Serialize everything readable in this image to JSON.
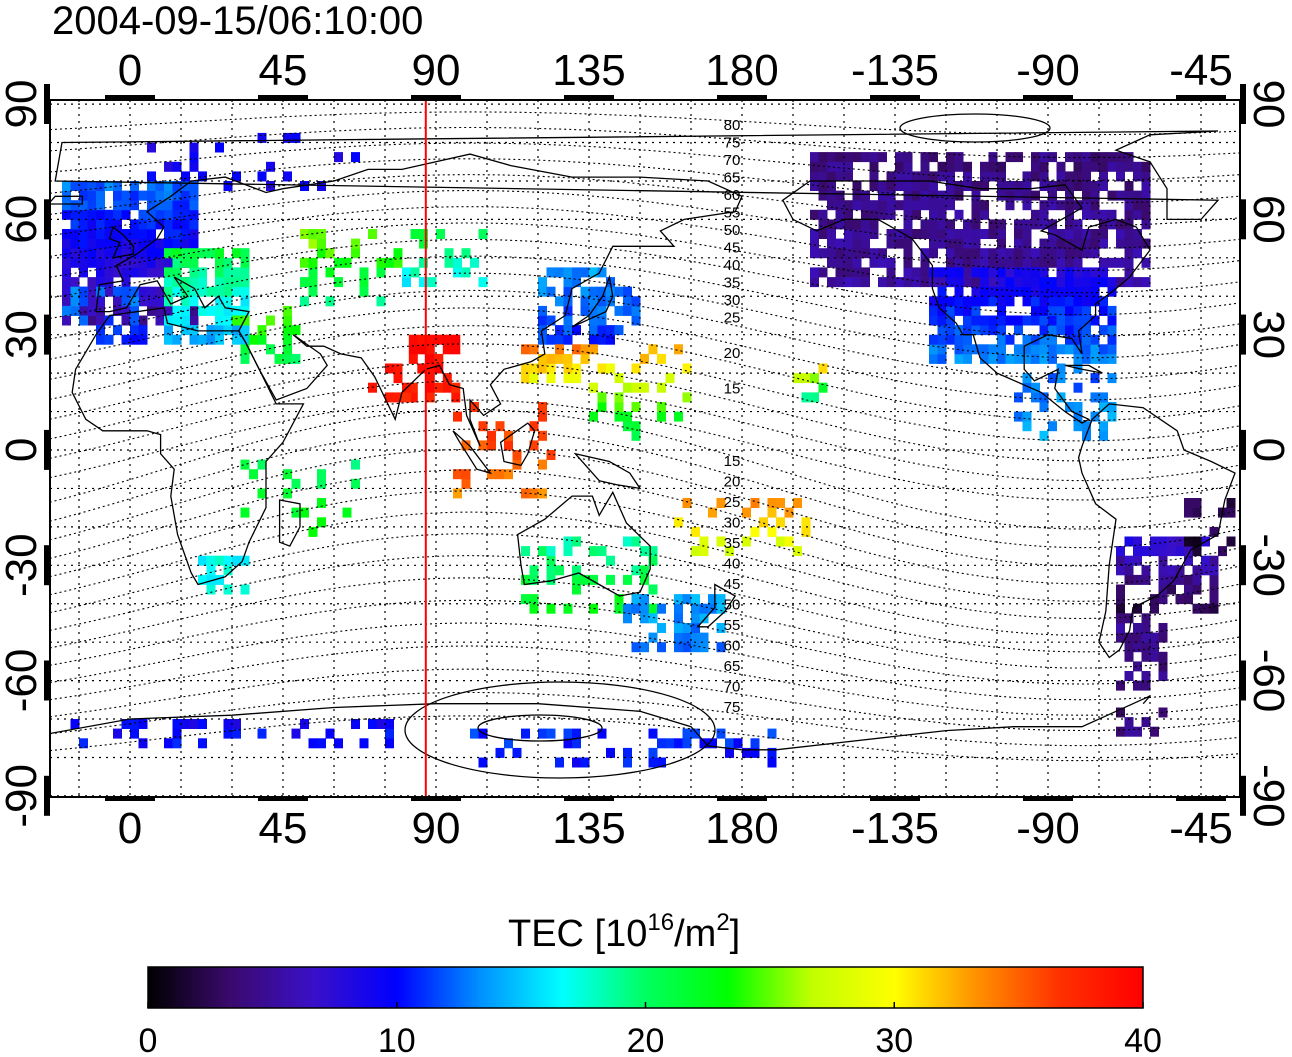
{
  "title": "2004-09-15/06:10:00",
  "top_lon_labels": [
    "0",
    "45",
    "90",
    "135",
    "180",
    "-135",
    "-90",
    "-45"
  ],
  "bottom_lon_labels": [
    "0",
    "45",
    "90",
    "135",
    "180",
    "-135",
    "-90",
    "-45"
  ],
  "left_lat_labels": [
    "90",
    "60",
    "30",
    "0",
    "-30",
    "-60",
    "-90"
  ],
  "right_lat_labels": [
    "90",
    "60",
    "30",
    "0",
    "-30",
    "-60",
    "-90"
  ],
  "contour_labels_north": [
    "80",
    "75",
    "70",
    "65",
    "60",
    "55",
    "50",
    "45",
    "40",
    "35",
    "30",
    "25",
    "20",
    "15"
  ],
  "contour_labels_south": [
    "15",
    "20",
    "25",
    "30",
    "35",
    "40",
    "45",
    "50",
    "55",
    "60",
    "65",
    "70",
    "75"
  ],
  "marker_line": {
    "longitude": 87,
    "color": "#ff0000"
  },
  "colorbar": {
    "label_main": "TEC  [10",
    "label_sup1": "16",
    "label_mid": "/m",
    "label_sup2": "2",
    "label_end": "]",
    "ticks": [
      "0",
      "10",
      "20",
      "30",
      "40"
    ],
    "min": 0,
    "max": 40,
    "colors": [
      "#000000",
      "#3a0a6e",
      "#3a10c8",
      "#0000ff",
      "#0090ff",
      "#00ffff",
      "#00ff60",
      "#00ff00",
      "#c0ff00",
      "#ffff00",
      "#ff9000",
      "#ff3000",
      "#ff0000"
    ]
  }
}
